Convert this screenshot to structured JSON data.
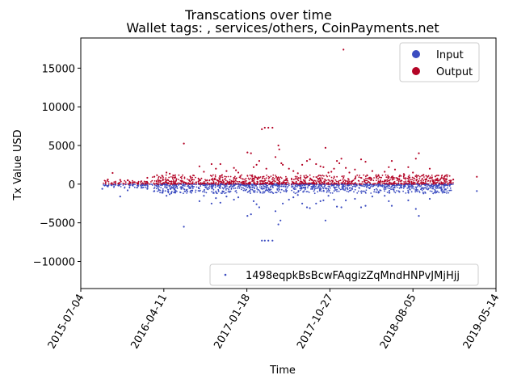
{
  "chart_data": {
    "type": "scatter",
    "title": "Transcations over time",
    "subtitle": "Wallet tags: , services/others, CoinPayments.net",
    "xlabel": "Time",
    "ylabel": "Tx Value USD",
    "x_ticks": [
      "2015-07-04",
      "2016-04-11",
      "2017-01-18",
      "2017-10-27",
      "2018-08-05",
      "2019-05-14"
    ],
    "xlim": [
      "2015-07-04",
      "2019-05-14"
    ],
    "ylim": [
      -13500,
      18900
    ],
    "y_ticks": [
      -10000,
      -5000,
      0,
      5000,
      10000,
      15000
    ],
    "y_tick_labels": [
      "−10000",
      "−5000",
      "0",
      "5000",
      "10000",
      "15000"
    ],
    "grid": false,
    "legend_series": {
      "placement": "top-right",
      "entries": [
        {
          "label": "Input",
          "color": "#3b4cc0"
        },
        {
          "label": "Output",
          "color": "#b40426"
        }
      ]
    },
    "legend_address": {
      "placement": "bottom-right",
      "label": "1498eqpkBsBcwFAqgizZqMndHNPvJMjHjj",
      "color": "#3b4cc0"
    },
    "series": [
      {
        "name": "Output",
        "color": "#b40426",
        "points": [
          [
            "2015-10-04",
            600
          ],
          [
            "2015-10-20",
            1450
          ],
          [
            "2015-11-15",
            550
          ],
          [
            "2015-12-10",
            500
          ],
          [
            "2016-02-15",
            820
          ],
          [
            "2016-03-10",
            960
          ],
          [
            "2016-04-05",
            1100
          ],
          [
            "2016-04-20",
            1500
          ],
          [
            "2016-05-01",
            1350
          ],
          [
            "2016-05-20",
            900
          ],
          [
            "2016-06-18",
            5250
          ],
          [
            "2016-07-10",
            1000
          ],
          [
            "2016-08-10",
            2300
          ],
          [
            "2016-08-25",
            1600
          ],
          [
            "2016-09-20",
            2600
          ],
          [
            "2016-10-05",
            2000
          ],
          [
            "2016-10-20",
            2600
          ],
          [
            "2016-11-10",
            1700
          ],
          [
            "2016-12-05",
            2100
          ],
          [
            "2016-12-12",
            1800
          ],
          [
            "2016-12-20",
            1500
          ],
          [
            "2017-01-20",
            4100
          ],
          [
            "2017-02-01",
            4000
          ],
          [
            "2017-02-10",
            2200
          ],
          [
            "2017-02-20",
            2500
          ],
          [
            "2017-03-01",
            3000
          ],
          [
            "2017-03-10",
            7100
          ],
          [
            "2017-03-20",
            7300
          ],
          [
            "2017-03-25",
            2000
          ],
          [
            "2017-04-01",
            7300
          ],
          [
            "2017-04-15",
            7300
          ],
          [
            "2017-04-25",
            3500
          ],
          [
            "2017-05-05",
            5000
          ],
          [
            "2017-05-08",
            4500
          ],
          [
            "2017-05-15",
            2700
          ],
          [
            "2017-05-20",
            2500
          ],
          [
            "2017-06-10",
            2000
          ],
          [
            "2017-06-25",
            1700
          ],
          [
            "2017-07-10",
            1400
          ],
          [
            "2017-07-25",
            2500
          ],
          [
            "2017-08-10",
            3000
          ],
          [
            "2017-08-20",
            3200
          ],
          [
            "2017-09-10",
            2600
          ],
          [
            "2017-09-25",
            2300
          ],
          [
            "2017-10-05",
            2200
          ],
          [
            "2017-10-12",
            4700
          ],
          [
            "2017-10-22",
            1500
          ],
          [
            "2017-11-01",
            1600
          ],
          [
            "2017-11-10",
            2000
          ],
          [
            "2017-11-20",
            3000
          ],
          [
            "2017-11-28",
            2700
          ],
          [
            "2017-12-05",
            3300
          ],
          [
            "2017-12-12",
            17400
          ],
          [
            "2017-12-20",
            2100
          ],
          [
            "2018-01-01",
            1500
          ],
          [
            "2018-01-20",
            1900
          ],
          [
            "2018-02-10",
            3200
          ],
          [
            "2018-02-25",
            2900
          ],
          [
            "2018-03-20",
            1700
          ],
          [
            "2018-04-10",
            1100
          ],
          [
            "2018-05-01",
            1600
          ],
          [
            "2018-05-15",
            2200
          ],
          [
            "2018-05-25",
            3000
          ],
          [
            "2018-06-05",
            1900
          ],
          [
            "2018-06-20",
            1000
          ],
          [
            "2018-07-05",
            1300
          ],
          [
            "2018-07-20",
            2200
          ],
          [
            "2018-08-05",
            1500
          ],
          [
            "2018-08-15",
            3300
          ],
          [
            "2018-08-25",
            4000
          ],
          [
            "2018-09-10",
            1200
          ],
          [
            "2018-10-01",
            2000
          ],
          [
            "2018-10-20",
            1000
          ],
          [
            "2018-11-10",
            800
          ],
          [
            "2018-12-20",
            600
          ],
          [
            "2019-03-10",
            950
          ]
        ]
      },
      {
        "name": "Input",
        "color": "#3b4cc0",
        "points": [
          [
            "2015-09-15",
            -600
          ],
          [
            "2015-10-04",
            -300
          ],
          [
            "2015-11-15",
            -1600
          ],
          [
            "2015-12-10",
            -800
          ],
          [
            "2016-02-15",
            -600
          ],
          [
            "2016-03-10",
            -900
          ],
          [
            "2016-04-05",
            -1100
          ],
          [
            "2016-04-20",
            -1500
          ],
          [
            "2016-05-01",
            -1300
          ],
          [
            "2016-05-20",
            -1100
          ],
          [
            "2016-06-18",
            -5500
          ],
          [
            "2016-07-10",
            -1000
          ],
          [
            "2016-08-10",
            -2200
          ],
          [
            "2016-08-25",
            -1500
          ],
          [
            "2016-09-20",
            -2500
          ],
          [
            "2016-10-05",
            -1800
          ],
          [
            "2016-10-20",
            -2400
          ],
          [
            "2016-11-10",
            -1600
          ],
          [
            "2016-12-05",
            -2000
          ],
          [
            "2016-12-20",
            -1700
          ],
          [
            "2017-01-20",
            -4100
          ],
          [
            "2017-02-01",
            -3900
          ],
          [
            "2017-02-10",
            -2200
          ],
          [
            "2017-02-20",
            -2600
          ],
          [
            "2017-03-01",
            -3000
          ],
          [
            "2017-03-10",
            -7300
          ],
          [
            "2017-03-20",
            -7300
          ],
          [
            "2017-04-01",
            -7300
          ],
          [
            "2017-04-15",
            -7300
          ],
          [
            "2017-04-25",
            -3500
          ],
          [
            "2017-05-05",
            -5200
          ],
          [
            "2017-05-12",
            -4700
          ],
          [
            "2017-05-20",
            -2500
          ],
          [
            "2017-06-10",
            -2000
          ],
          [
            "2017-06-25",
            -1700
          ],
          [
            "2017-07-10",
            -1400
          ],
          [
            "2017-07-25",
            -2500
          ],
          [
            "2017-08-10",
            -3000
          ],
          [
            "2017-08-20",
            -3100
          ],
          [
            "2017-09-10",
            -2500
          ],
          [
            "2017-09-25",
            -2200
          ],
          [
            "2017-10-05",
            -2100
          ],
          [
            "2017-10-12",
            -4700
          ],
          [
            "2017-10-22",
            -1500
          ],
          [
            "2017-11-10",
            -2000
          ],
          [
            "2017-11-20",
            -2900
          ],
          [
            "2017-12-05",
            -3000
          ],
          [
            "2017-12-20",
            -2100
          ],
          [
            "2018-01-20",
            -1900
          ],
          [
            "2018-02-10",
            -3000
          ],
          [
            "2018-02-25",
            -2800
          ],
          [
            "2018-03-20",
            -1600
          ],
          [
            "2018-04-10",
            -1100
          ],
          [
            "2018-05-01",
            -1500
          ],
          [
            "2018-05-15",
            -2200
          ],
          [
            "2018-05-25",
            -2800
          ],
          [
            "2018-06-20",
            -1000
          ],
          [
            "2018-07-20",
            -2100
          ],
          [
            "2018-08-15",
            -3200
          ],
          [
            "2018-08-25",
            -4100
          ],
          [
            "2018-09-10",
            -1200
          ],
          [
            "2018-10-01",
            -1900
          ],
          [
            "2018-10-20",
            -900
          ],
          [
            "2018-11-10",
            -700
          ],
          [
            "2019-03-10",
            -900
          ]
        ]
      }
    ]
  }
}
